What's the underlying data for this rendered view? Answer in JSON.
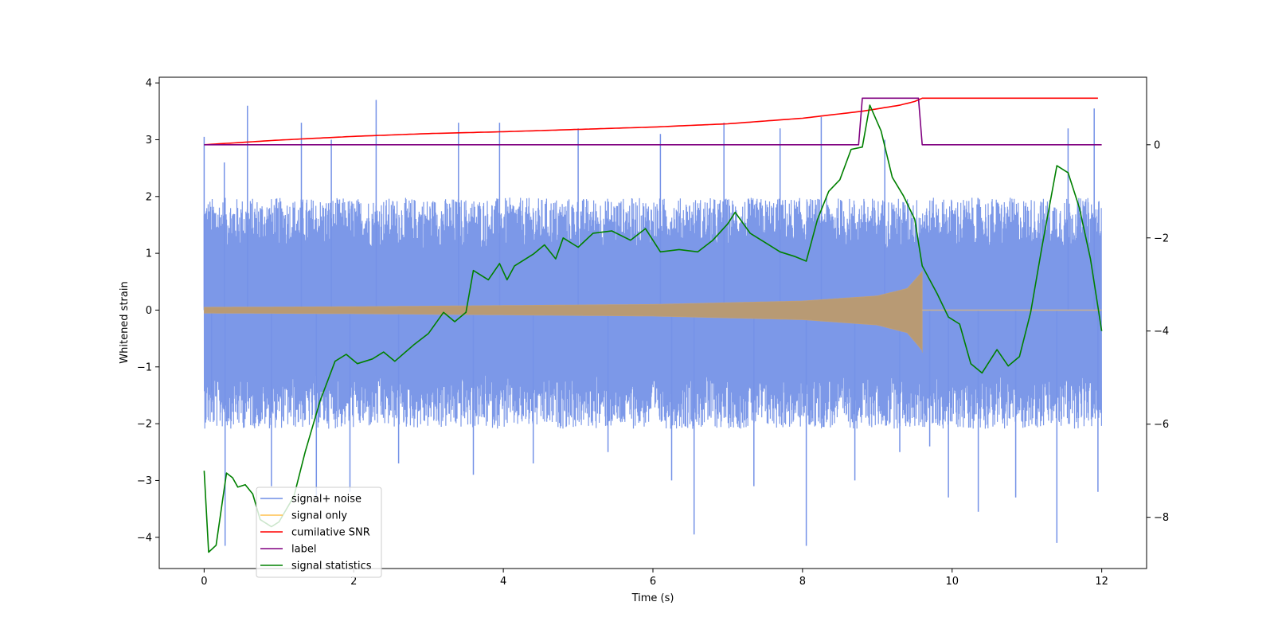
{
  "chart_data": {
    "type": "line",
    "title": "",
    "xlabel": "Time (s)",
    "ylabel": "Whitened strain",
    "xlim": [
      -0.6,
      12.6
    ],
    "ylim": [
      -4.55,
      4.1
    ],
    "y2lim": [
      -9.1,
      1.45
    ],
    "x_ticks": [
      0,
      2,
      4,
      6,
      8,
      10,
      12
    ],
    "x_tick_labels": [
      "0",
      "2",
      "4",
      "6",
      "8",
      "10",
      "12"
    ],
    "y_ticks": [
      -4,
      -3,
      -2,
      -1,
      0,
      1,
      2,
      3,
      4
    ],
    "y_tick_labels": [
      "−4",
      "−3",
      "−2",
      "−1",
      "0",
      "1",
      "2",
      "3",
      "4"
    ],
    "y2_ticks": [
      -8,
      -6,
      -4,
      -2,
      0
    ],
    "y2_tick_labels": [
      "−8",
      "−6",
      "−4",
      "−2",
      "0"
    ],
    "grid": false,
    "legend_position": "lower-left",
    "legend": [
      {
        "label": "signal+ noise",
        "color": "#6f8de6"
      },
      {
        "label": "signal only",
        "color": "#ffc04d"
      },
      {
        "label": "cumilative SNR",
        "color": "#ff0000"
      },
      {
        "label": "label",
        "color": "#800080"
      },
      {
        "label": "signal statistics",
        "color": "#008000"
      }
    ],
    "series": [
      {
        "name": "signal+ noise",
        "axis": "left",
        "color": "#7592e7",
        "description": "dense noise band",
        "band_upper": [
          [
            0,
            1.8
          ],
          [
            2,
            1.8
          ],
          [
            4,
            1.8
          ],
          [
            6,
            1.8
          ],
          [
            8,
            1.8
          ],
          [
            9.6,
            1.8
          ],
          [
            12,
            1.8
          ]
        ],
        "band_lower": [
          [
            0,
            -1.9
          ],
          [
            2,
            -1.9
          ],
          [
            4,
            -1.9
          ],
          [
            6,
            -1.9
          ],
          [
            8,
            -1.9
          ],
          [
            9.6,
            -1.9
          ],
          [
            12,
            -1.9
          ]
        ],
        "spikes": [
          [
            0.0,
            3.05
          ],
          [
            0.1,
            -1.8
          ],
          [
            0.27,
            2.6
          ],
          [
            0.28,
            -4.15
          ],
          [
            0.58,
            3.6
          ],
          [
            0.9,
            -3.1
          ],
          [
            1.3,
            3.3
          ],
          [
            1.5,
            -3.3
          ],
          [
            1.7,
            3.0
          ],
          [
            1.95,
            -3.2
          ],
          [
            2.3,
            3.7
          ],
          [
            2.6,
            -2.7
          ],
          [
            3.4,
            3.3
          ],
          [
            3.6,
            -2.9
          ],
          [
            3.95,
            3.3
          ],
          [
            4.4,
            -2.7
          ],
          [
            5.0,
            3.2
          ],
          [
            5.4,
            -2.5
          ],
          [
            6.1,
            3.1
          ],
          [
            6.25,
            -3.0
          ],
          [
            6.55,
            -3.95
          ],
          [
            6.95,
            3.3
          ],
          [
            7.35,
            -3.1
          ],
          [
            7.7,
            3.2
          ],
          [
            8.05,
            -4.15
          ],
          [
            8.25,
            3.4
          ],
          [
            8.7,
            -3.0
          ],
          [
            9.1,
            3.0
          ],
          [
            9.3,
            -2.5
          ],
          [
            9.7,
            -2.4
          ],
          [
            9.95,
            -3.3
          ],
          [
            10.35,
            -3.55
          ],
          [
            10.85,
            -3.3
          ],
          [
            11.4,
            -4.1
          ],
          [
            11.55,
            3.2
          ],
          [
            11.9,
            3.55
          ],
          [
            11.95,
            -3.2
          ]
        ]
      },
      {
        "name": "signal only",
        "axis": "left",
        "color": "#ffc04d",
        "description": "chirp envelope growing to 9.6 s then flat zero",
        "envelope": [
          [
            0,
            0.05
          ],
          [
            2,
            0.06
          ],
          [
            4,
            0.08
          ],
          [
            6,
            0.1
          ],
          [
            8,
            0.16
          ],
          [
            9,
            0.25
          ],
          [
            9.4,
            0.38
          ],
          [
            9.55,
            0.6
          ],
          [
            9.6,
            0.68
          ]
        ],
        "after_zero_from": 9.6
      },
      {
        "name": "cumilative SNR",
        "axis": "right",
        "color": "#ff0000",
        "points": [
          [
            0,
            0.0
          ],
          [
            1,
            0.1
          ],
          [
            2,
            0.18
          ],
          [
            3,
            0.24
          ],
          [
            4,
            0.28
          ],
          [
            5,
            0.33
          ],
          [
            6,
            0.38
          ],
          [
            7,
            0.45
          ],
          [
            8,
            0.57
          ],
          [
            8.8,
            0.72
          ],
          [
            9.3,
            0.85
          ],
          [
            9.5,
            0.93
          ],
          [
            9.6,
            1.0
          ],
          [
            12,
            1.0
          ]
        ]
      },
      {
        "name": "label",
        "axis": "right",
        "color": "#800080",
        "points": [
          [
            0,
            0.0
          ],
          [
            8.75,
            0.0
          ],
          [
            8.8,
            1.0
          ],
          [
            9.55,
            1.0
          ],
          [
            9.6,
            0.0
          ],
          [
            12,
            0.0
          ]
        ]
      },
      {
        "name": "signal statistics",
        "axis": "right",
        "color": "#008000",
        "points": [
          [
            0,
            -7.0
          ],
          [
            0.06,
            -8.75
          ],
          [
            0.16,
            -8.6
          ],
          [
            0.25,
            -7.6
          ],
          [
            0.3,
            -7.05
          ],
          [
            0.38,
            -7.15
          ],
          [
            0.45,
            -7.35
          ],
          [
            0.55,
            -7.3
          ],
          [
            0.65,
            -7.5
          ],
          [
            0.75,
            -8.05
          ],
          [
            0.9,
            -8.2
          ],
          [
            1.0,
            -8.1
          ],
          [
            1.2,
            -7.55
          ],
          [
            1.35,
            -6.6
          ],
          [
            1.55,
            -5.5
          ],
          [
            1.75,
            -4.65
          ],
          [
            1.9,
            -4.5
          ],
          [
            2.05,
            -4.7
          ],
          [
            2.25,
            -4.6
          ],
          [
            2.4,
            -4.45
          ],
          [
            2.55,
            -4.65
          ],
          [
            2.8,
            -4.3
          ],
          [
            3.0,
            -4.05
          ],
          [
            3.2,
            -3.6
          ],
          [
            3.35,
            -3.8
          ],
          [
            3.5,
            -3.6
          ],
          [
            3.6,
            -2.7
          ],
          [
            3.8,
            -2.9
          ],
          [
            3.95,
            -2.55
          ],
          [
            4.05,
            -2.9
          ],
          [
            4.15,
            -2.6
          ],
          [
            4.4,
            -2.35
          ],
          [
            4.55,
            -2.15
          ],
          [
            4.7,
            -2.45
          ],
          [
            4.8,
            -2.0
          ],
          [
            5.0,
            -2.2
          ],
          [
            5.2,
            -1.9
          ],
          [
            5.45,
            -1.85
          ],
          [
            5.7,
            -2.05
          ],
          [
            5.9,
            -1.8
          ],
          [
            6.1,
            -2.3
          ],
          [
            6.35,
            -2.25
          ],
          [
            6.6,
            -2.3
          ],
          [
            6.8,
            -2.05
          ],
          [
            7.0,
            -1.7
          ],
          [
            7.1,
            -1.45
          ],
          [
            7.3,
            -1.9
          ],
          [
            7.5,
            -2.1
          ],
          [
            7.7,
            -2.3
          ],
          [
            7.9,
            -2.4
          ],
          [
            8.05,
            -2.5
          ],
          [
            8.2,
            -1.6
          ],
          [
            8.35,
            -1.0
          ],
          [
            8.5,
            -0.75
          ],
          [
            8.65,
            -0.1
          ],
          [
            8.8,
            -0.05
          ],
          [
            8.9,
            0.85
          ],
          [
            9.05,
            0.3
          ],
          [
            9.2,
            -0.7
          ],
          [
            9.35,
            -1.1
          ],
          [
            9.5,
            -1.6
          ],
          [
            9.6,
            -2.6
          ],
          [
            9.8,
            -3.2
          ],
          [
            9.95,
            -3.7
          ],
          [
            10.1,
            -3.85
          ],
          [
            10.25,
            -4.7
          ],
          [
            10.4,
            -4.9
          ],
          [
            10.6,
            -4.4
          ],
          [
            10.75,
            -4.75
          ],
          [
            10.9,
            -4.55
          ],
          [
            11.05,
            -3.6
          ],
          [
            11.2,
            -2.2
          ],
          [
            11.4,
            -0.45
          ],
          [
            11.55,
            -0.6
          ],
          [
            11.7,
            -1.35
          ],
          [
            11.85,
            -2.45
          ],
          [
            12.0,
            -4.0
          ]
        ]
      }
    ]
  }
}
